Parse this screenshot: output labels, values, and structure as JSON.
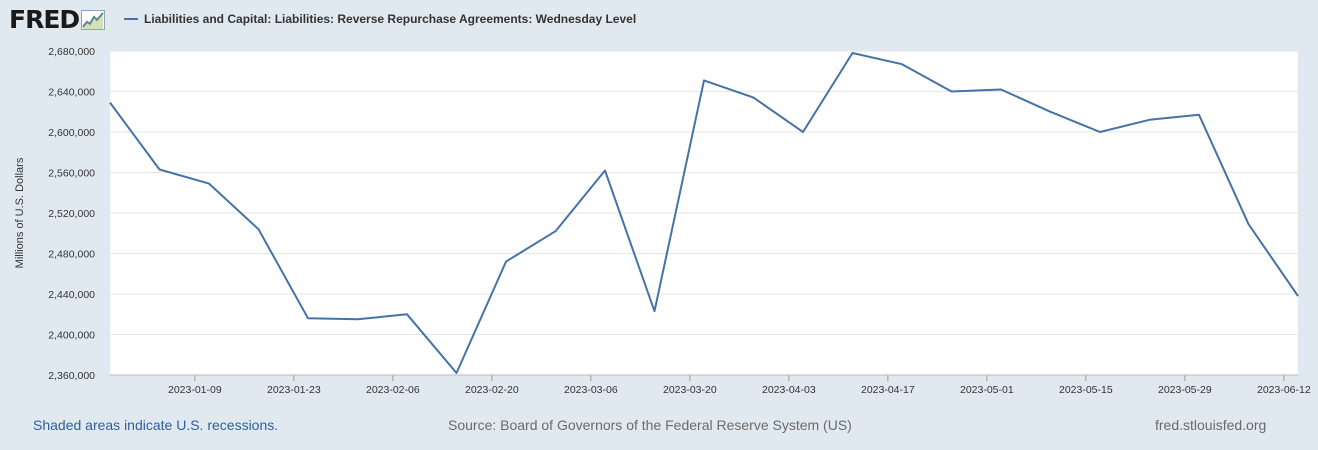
{
  "header": {
    "logo_text": "FRED",
    "logo_icon": "trend-graph-icon",
    "series_title": "Liabilities and Capital: Liabilities: Reverse Repurchase Agreements: Wednesday Level"
  },
  "footer": {
    "recession_note": "Shaded areas indicate U.S. recessions.",
    "source": "Source: Board of Governors of the Federal Reserve System (US)",
    "url": "fred.stlouisfed.org"
  },
  "colors": {
    "background": "#e1e9f0",
    "plot_background": "#ffffff",
    "series_line": "#4572a7",
    "gridline": "#e6e6e6"
  },
  "chart_data": {
    "type": "line",
    "title": "Liabilities and Capital: Liabilities: Reverse Repurchase Agreements: Wednesday Level",
    "ylabel": "Millions of U.S. Dollars",
    "xlabel": "",
    "ylim": [
      2360000,
      2680000
    ],
    "yticks": [
      2360000,
      2400000,
      2440000,
      2480000,
      2520000,
      2560000,
      2600000,
      2640000,
      2680000
    ],
    "ytick_labels": [
      "2,360,000",
      "2,400,000",
      "2,440,000",
      "2,480,000",
      "2,520,000",
      "2,560,000",
      "2,600,000",
      "2,640,000",
      "2,680,000"
    ],
    "xlim": [
      "2022-12-28",
      "2023-06-14"
    ],
    "xticks": [
      "2023-01-09",
      "2023-01-23",
      "2023-02-06",
      "2023-02-20",
      "2023-03-06",
      "2023-03-20",
      "2023-04-03",
      "2023-04-17",
      "2023-05-01",
      "2023-05-15",
      "2023-05-29",
      "2023-06-12"
    ],
    "grid": true,
    "legend": "top-left",
    "series": [
      {
        "name": "Liabilities and Capital: Liabilities: Reverse Repurchase Agreements: Wednesday Level",
        "x": [
          "2022-12-28",
          "2023-01-04",
          "2023-01-11",
          "2023-01-18",
          "2023-01-25",
          "2023-02-01",
          "2023-02-08",
          "2023-02-15",
          "2023-02-22",
          "2023-03-01",
          "2023-03-08",
          "2023-03-15",
          "2023-03-22",
          "2023-03-29",
          "2023-04-05",
          "2023-04-12",
          "2023-04-19",
          "2023-04-26",
          "2023-05-03",
          "2023-05-10",
          "2023-05-17",
          "2023-05-24",
          "2023-05-31",
          "2023-06-07",
          "2023-06-14"
        ],
        "values": [
          2629000,
          2563000,
          2549000,
          2504000,
          2416000,
          2415000,
          2420000,
          2362000,
          2472000,
          2502000,
          2562000,
          2423000,
          2651000,
          2634000,
          2600000,
          2678000,
          2667000,
          2640000,
          2642000,
          2620000,
          2600000,
          2612000,
          2617000,
          2509000,
          2438000
        ]
      }
    ]
  }
}
